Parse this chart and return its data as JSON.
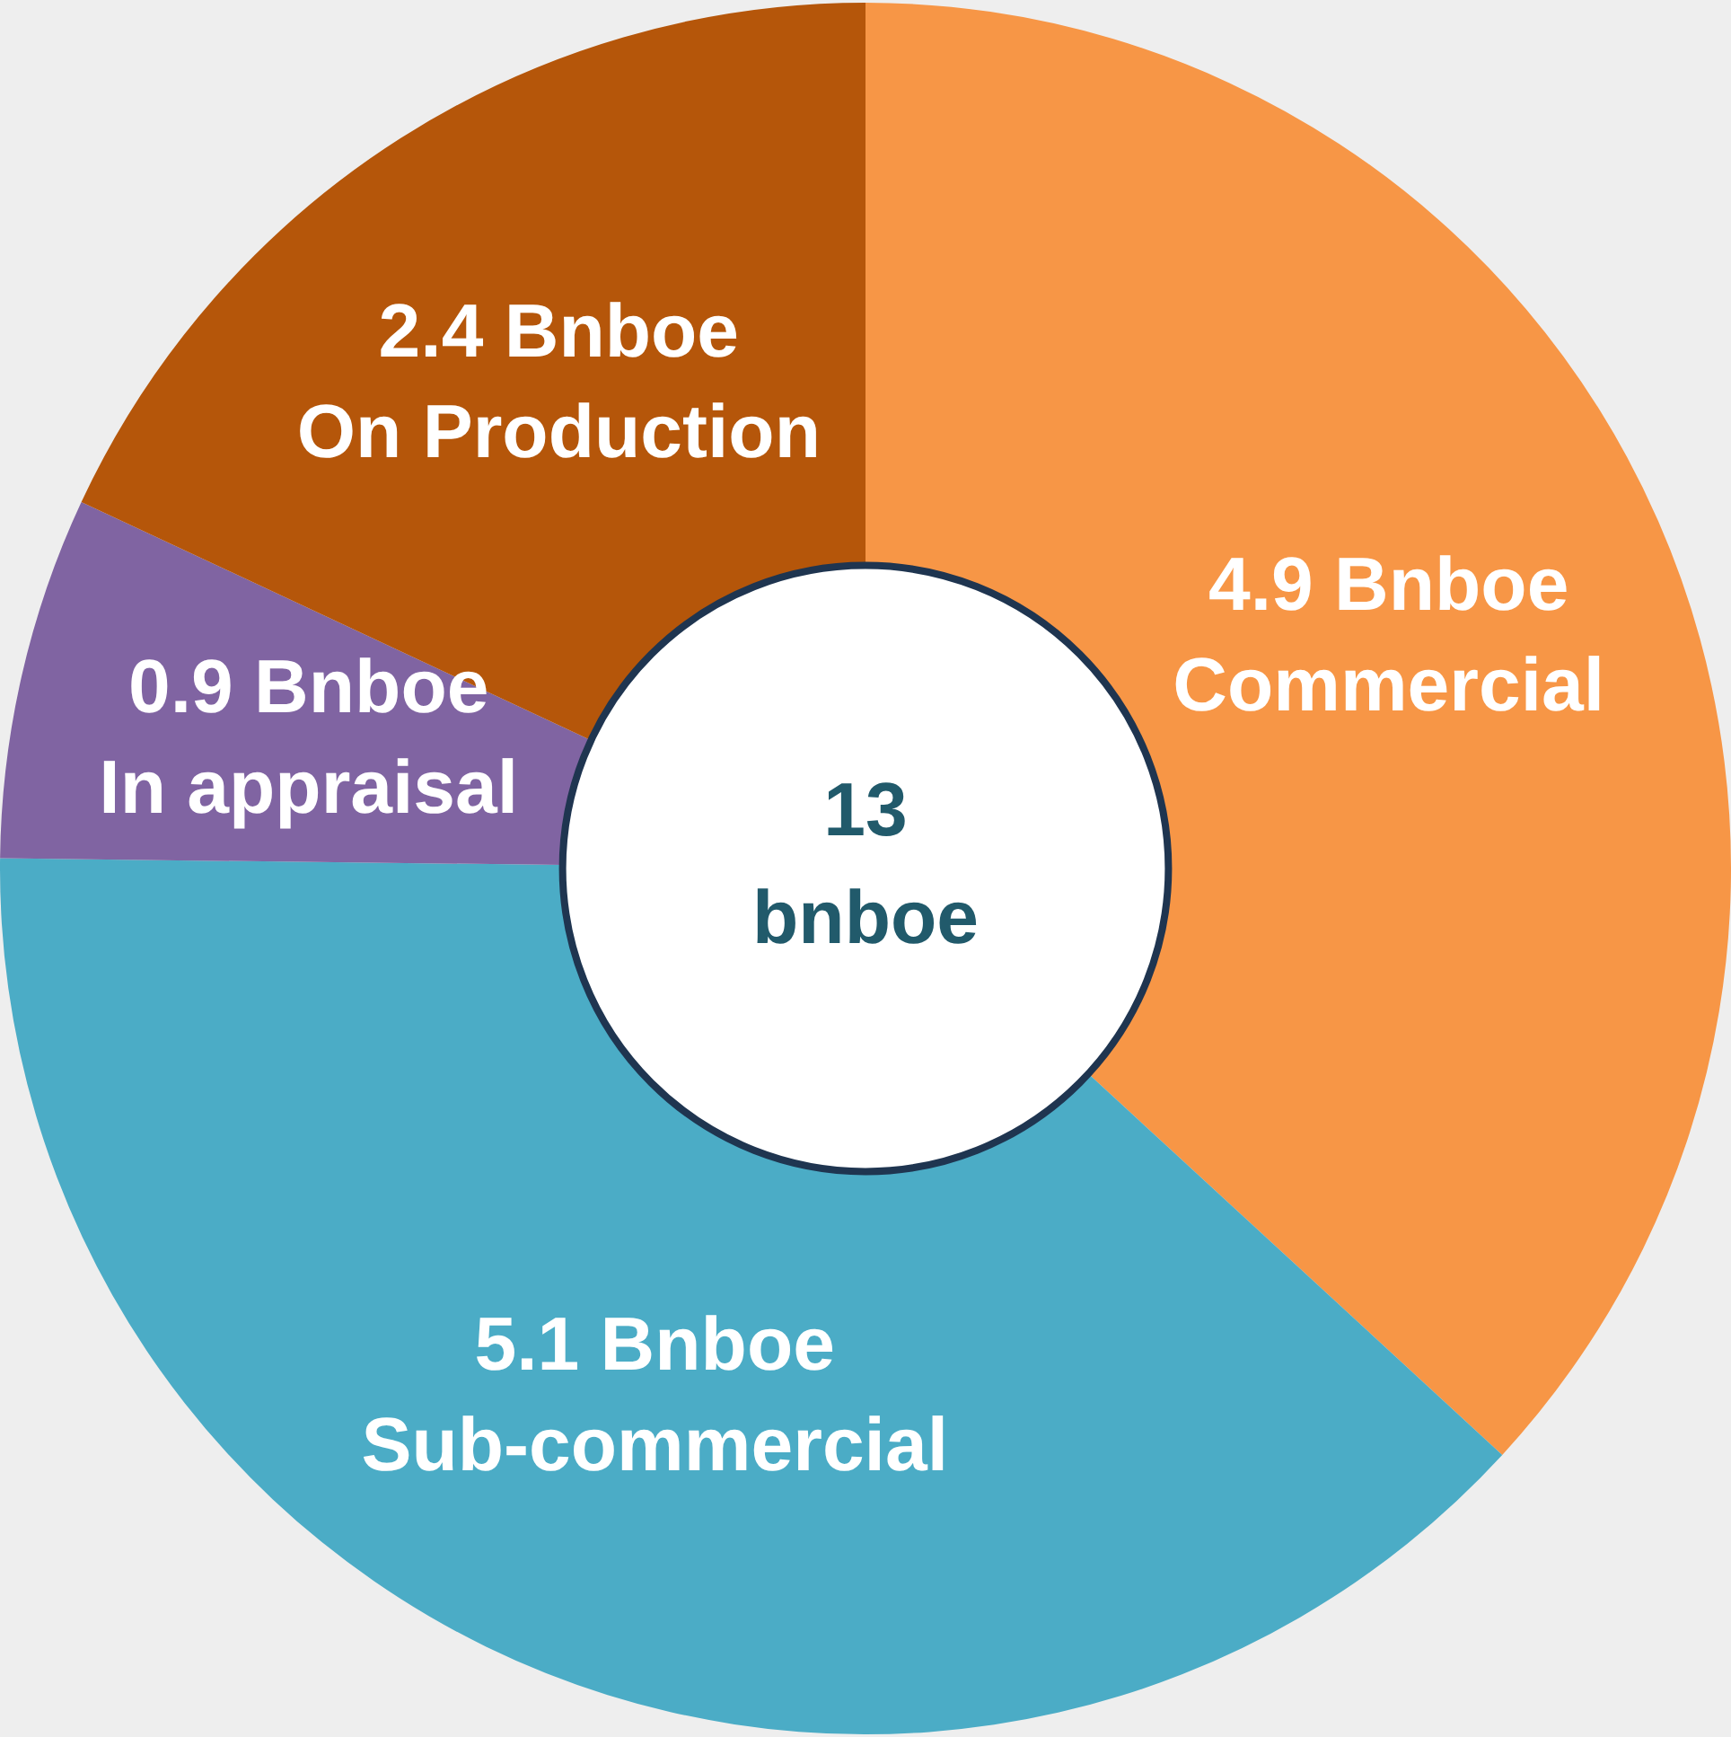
{
  "chart_data": {
    "type": "donut",
    "categories": [
      "Commercial",
      "Sub-commercial",
      "In appraisal",
      "On Production"
    ],
    "values": [
      4.9,
      5.1,
      0.9,
      2.4
    ],
    "value_labels": [
      "4.9 Bnboe",
      "5.1 Bnboe",
      "0.9 Bnboe",
      "2.4 Bnboe"
    ],
    "colors": [
      "#f79646",
      "#4bacc6",
      "#8064a2",
      "#b5560a"
    ],
    "annotations": [
      "13 bnboe"
    ],
    "legend": false
  }
}
